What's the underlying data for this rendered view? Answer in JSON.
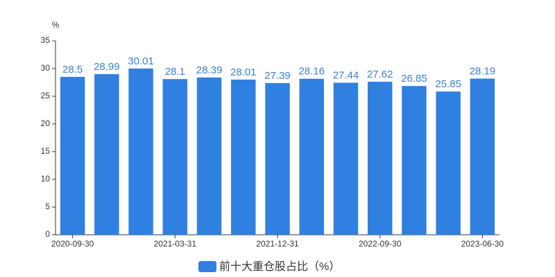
{
  "chart_data": {
    "type": "bar",
    "unit": "%",
    "legend": "前十大重仓股占比（%）",
    "categories": [
      "2020-09-30",
      null,
      null,
      "2021-03-31",
      null,
      null,
      "2021-12-31",
      null,
      null,
      "2022-09-30",
      null,
      null,
      "2023-06-30"
    ],
    "values": [
      28.5,
      28.99,
      30.01,
      28.1,
      28.39,
      28.01,
      27.39,
      28.16,
      27.44,
      27.62,
      26.85,
      25.85,
      28.19
    ],
    "color": "#2f80e0",
    "ylim": [
      0,
      35
    ],
    "yticks": [
      0,
      5,
      10,
      15,
      20,
      25,
      30,
      35
    ],
    "grid": false
  }
}
